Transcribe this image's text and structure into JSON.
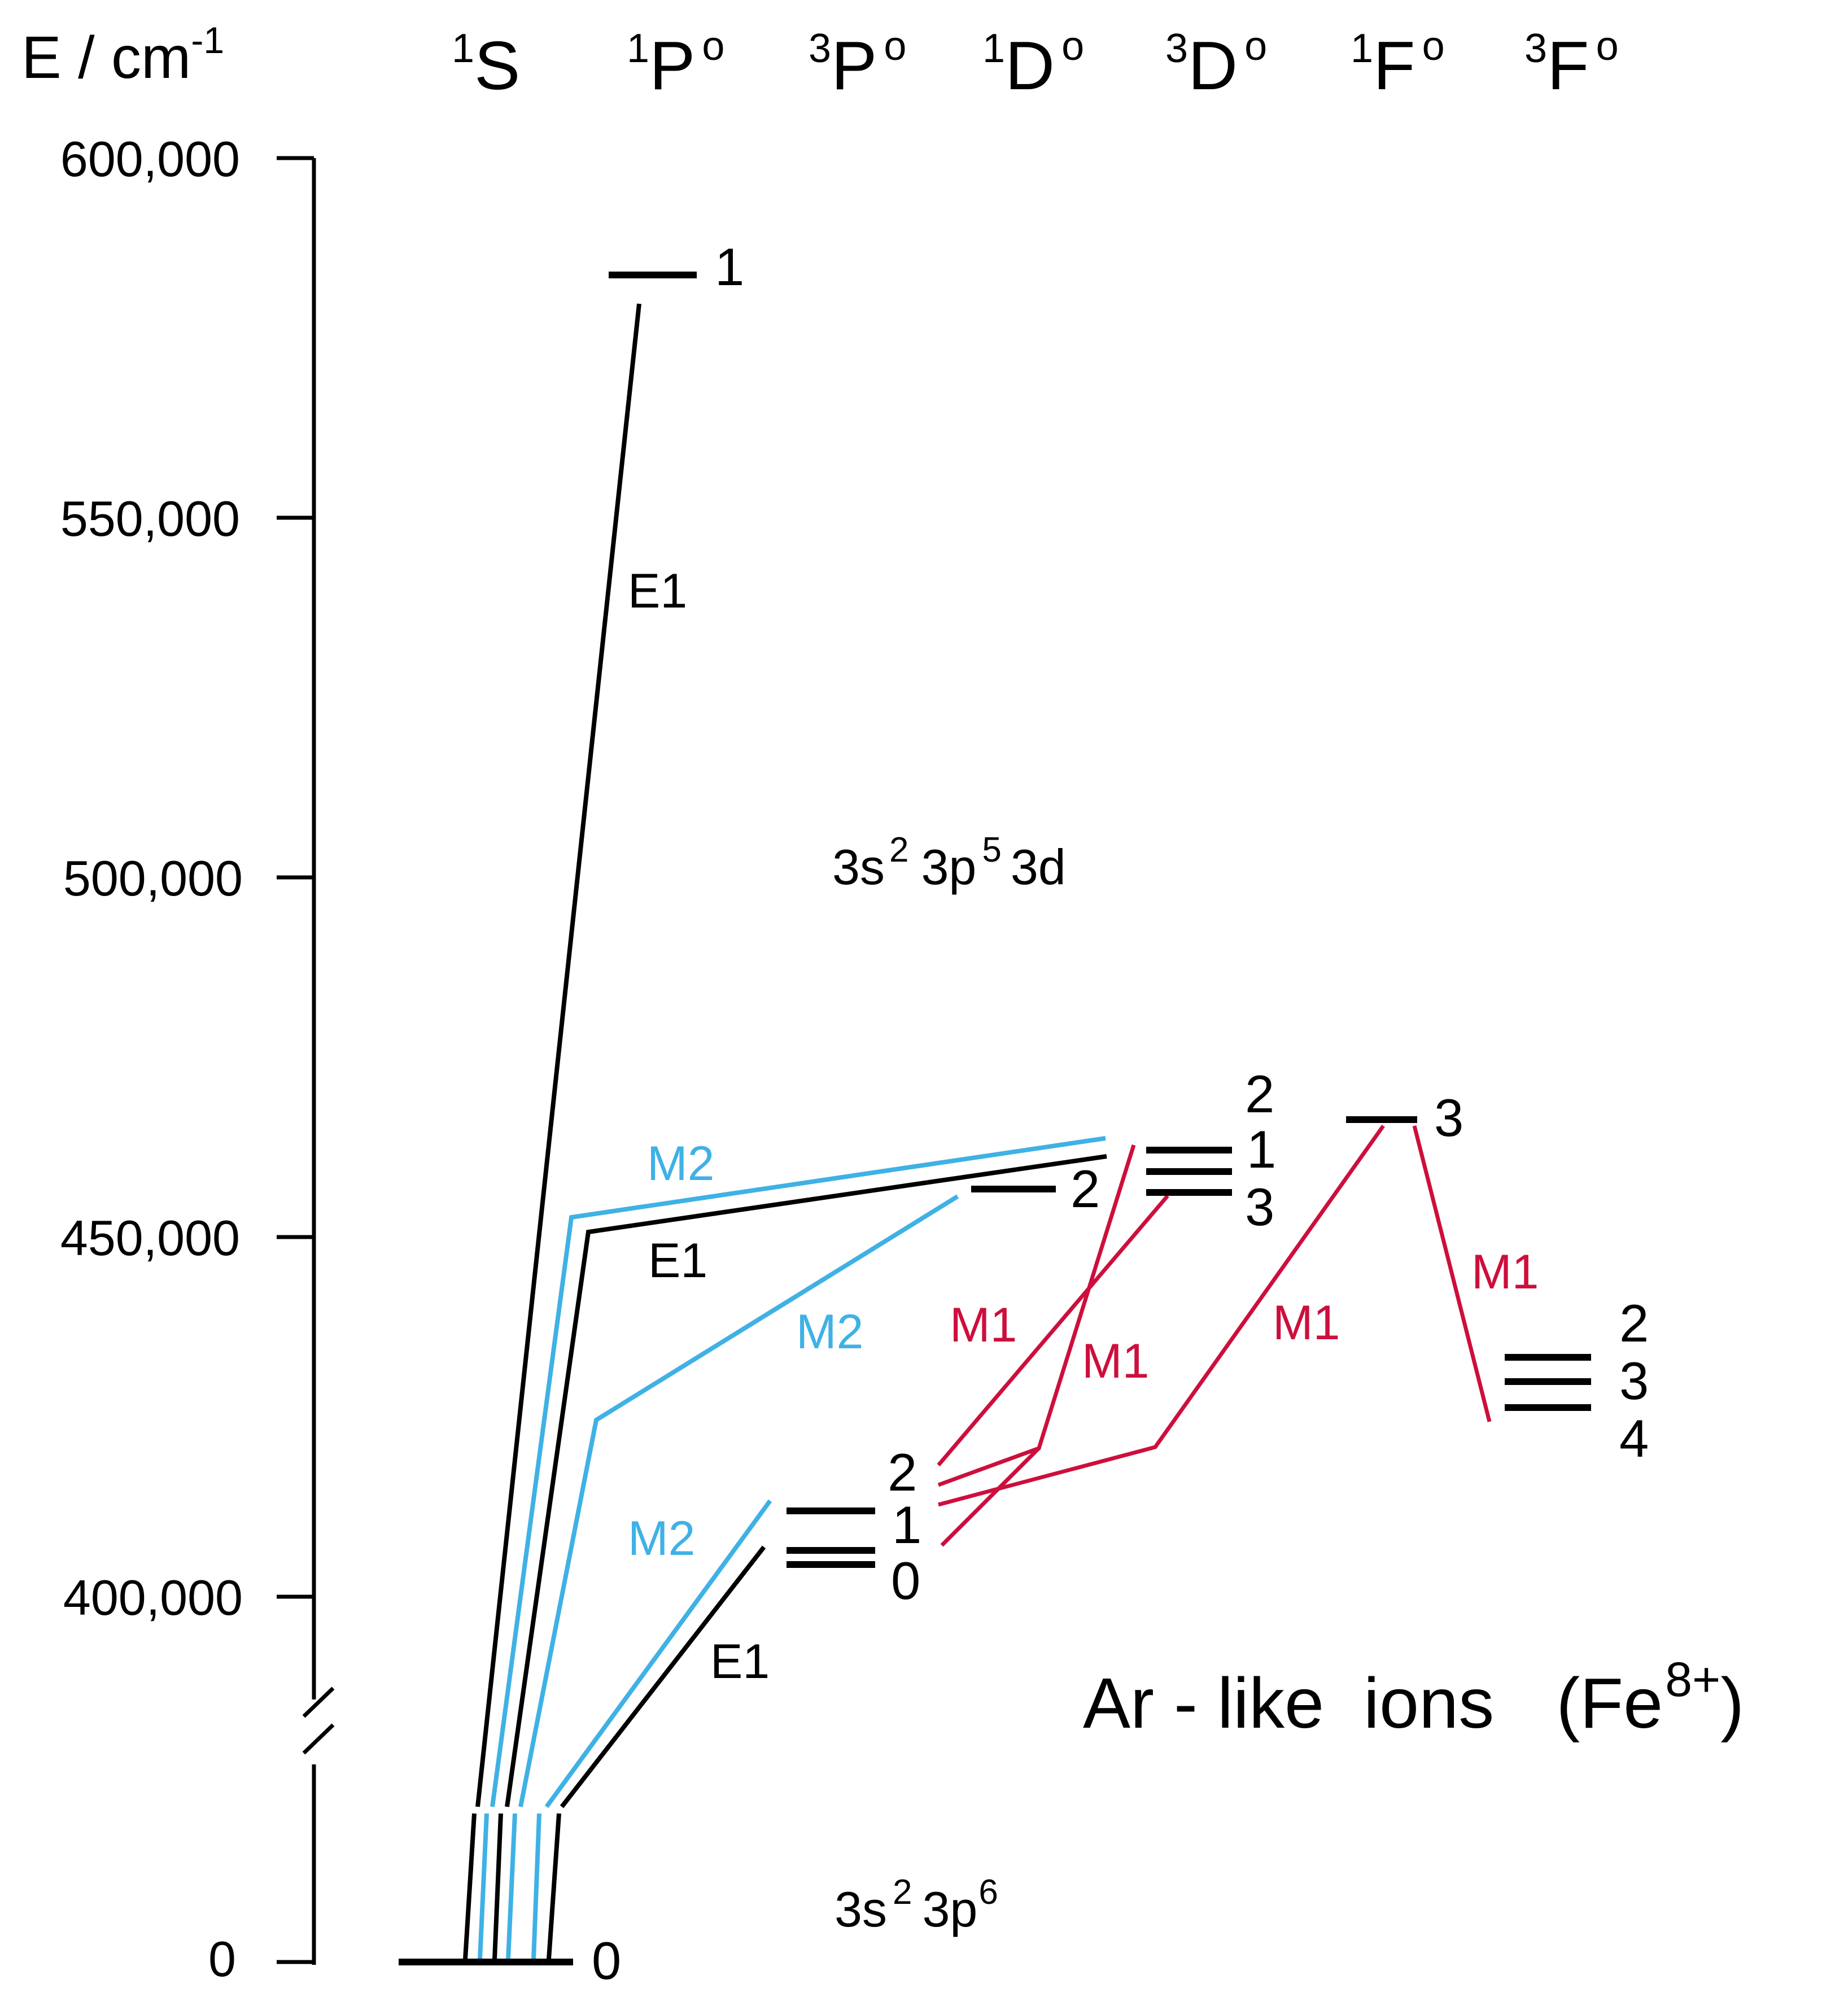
{
  "axis": {
    "title_base": "E / cm",
    "title_sup": "-1",
    "ticks": [
      {
        "label": "600,000",
        "value": 600000
      },
      {
        "label": "550,000",
        "value": 550000
      },
      {
        "label": "500,000",
        "value": 500000
      },
      {
        "label": "450,000",
        "value": 450000
      },
      {
        "label": "400,000",
        "value": 400000
      },
      {
        "label": "0",
        "value": 0
      }
    ],
    "axis_break": true
  },
  "terms": [
    {
      "mult": "1",
      "letter": "S",
      "parity": ""
    },
    {
      "mult": "1",
      "letter": "P",
      "parity": "o"
    },
    {
      "mult": "3",
      "letter": "P",
      "parity": "o"
    },
    {
      "mult": "1",
      "letter": "D",
      "parity": "o"
    },
    {
      "mult": "3",
      "letter": "D",
      "parity": "o"
    },
    {
      "mult": "1",
      "letter": "F",
      "parity": "o"
    },
    {
      "mult": "3",
      "letter": "F",
      "parity": "o"
    }
  ],
  "configurations": {
    "excited": {
      "a": "3s",
      "a_sup": "2",
      "b": "3p",
      "b_sup": "5",
      "c": "3d"
    },
    "ground": {
      "a": "3s",
      "a_sup": "2",
      "b": "3p",
      "b_sup": "6"
    }
  },
  "levels": {
    "ground_J": "0",
    "P1_J": "1",
    "P3_J": [
      "2",
      "1",
      "0"
    ],
    "D1_J": "2",
    "D3_J": [
      "2",
      "1",
      "3"
    ],
    "F1_J": "3",
    "F3_J": [
      "2",
      "3",
      "4"
    ]
  },
  "transitions": {
    "e1": "E1",
    "m1": "M1",
    "m2": "M2"
  },
  "ion": {
    "text": "Ar - like  ions",
    "species_open": "(Fe",
    "charge": "8+",
    "species_close": ")"
  },
  "colors": {
    "e1": "#000000",
    "m2": "#3fb1e5",
    "m1": "#cc0f3c"
  }
}
